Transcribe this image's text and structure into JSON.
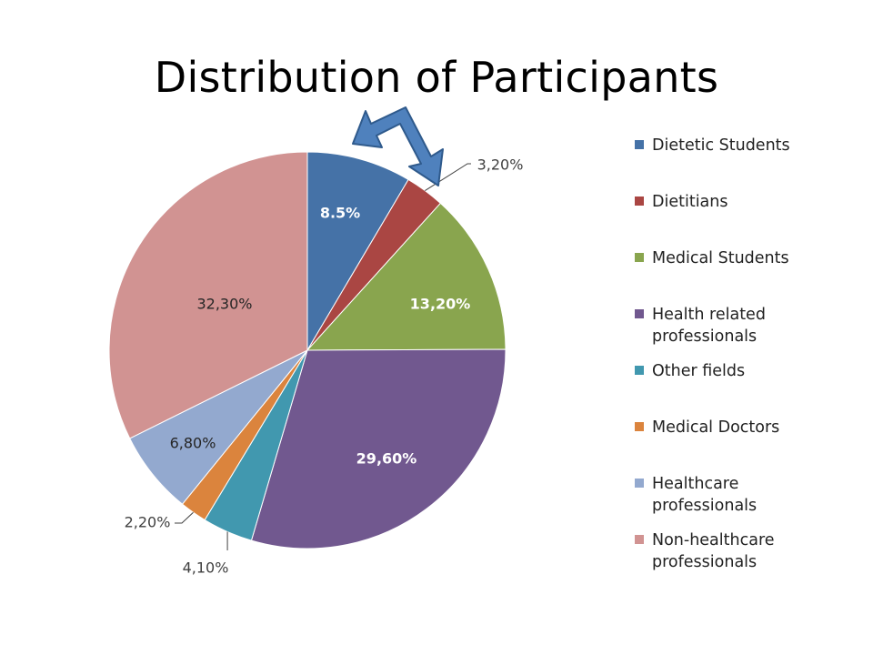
{
  "slide": {
    "title": "Distribution of Participants"
  },
  "chart_data": {
    "type": "pie",
    "title": "Distribution of Participants",
    "legend_position": "right",
    "start_angle_deg": 0,
    "direction": "clockwise",
    "slices": [
      {
        "name": "Dietetic Students",
        "value": 8.5,
        "label": "8.5%",
        "color": "#4572A7"
      },
      {
        "name": "Dietitians",
        "value": 3.2,
        "label": "3,20%",
        "color": "#AA4643"
      },
      {
        "name": "Medical Students",
        "value": 13.2,
        "label": "13,20%",
        "color": "#89A54E"
      },
      {
        "name": "Health related professionals",
        "value": 29.6,
        "label": "29,60%",
        "color": "#71588F"
      },
      {
        "name": "Other fields",
        "value": 4.1,
        "label": "4,10%",
        "color": "#4198AF"
      },
      {
        "name": "Medical Doctors",
        "value": 2.2,
        "label": "2,20%",
        "color": "#DB843D"
      },
      {
        "name": "Healthcare professionals",
        "value": 6.8,
        "label": "6,80%",
        "color": "#93A9CF"
      },
      {
        "name": "Non-healthcare professionals",
        "value": 32.3,
        "label": "32,30%",
        "color": "#D19392"
      }
    ],
    "annotation": {
      "shape": "double-headed arrow",
      "color": "#4F81BD",
      "points_to": [
        "Dietetic Students",
        "Dietitians"
      ]
    }
  }
}
